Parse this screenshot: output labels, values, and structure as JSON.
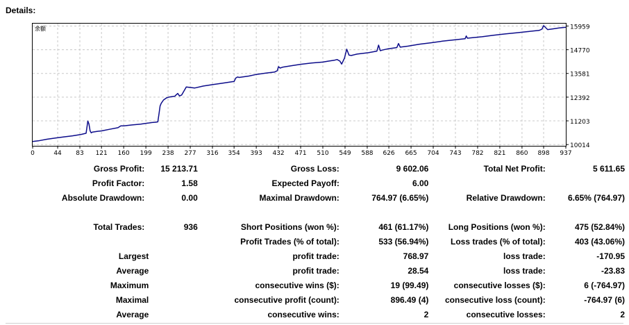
{
  "title": "Details:",
  "chart_data": {
    "type": "line",
    "title": "",
    "chart_label": "余额",
    "xlabel": "",
    "ylabel": "",
    "x_ticks": [
      0,
      44,
      83,
      121,
      160,
      199,
      238,
      277,
      316,
      354,
      393,
      432,
      471,
      510,
      549,
      588,
      626,
      665,
      704,
      743,
      782,
      821,
      860,
      898,
      937
    ],
    "y_ticks": [
      10014,
      11203,
      12392,
      13581,
      14770,
      15959
    ],
    "xlim": [
      0,
      937
    ],
    "ylim": [
      9950,
      16080
    ],
    "grid": true,
    "line_color": "#0c0c8a",
    "series": [
      {
        "x": [
          0,
          10,
          25,
          40,
          55,
          70,
          85,
          94,
          97,
          99,
          101,
          103,
          105,
          110,
          115,
          121,
          135,
          150,
          155,
          160,
          175,
          190,
          199,
          205,
          210,
          215,
          220,
          222,
          224,
          226,
          230,
          235,
          240,
          245,
          250,
          252,
          255,
          258,
          262,
          270,
          285,
          300,
          316,
          335,
          354,
          357,
          360,
          363,
          380,
          393,
          410,
          425,
          430,
          432,
          435,
          440,
          455,
          471,
          490,
          510,
          520,
          530,
          535,
          540,
          543,
          548,
          552,
          556,
          560,
          570,
          590,
          605,
          608,
          611,
          614,
          625,
          640,
          643,
          646,
          660,
          680,
          700,
          720,
          740,
          760,
          762,
          764,
          790,
          810,
          830,
          850,
          870,
          890,
          895,
          898,
          905,
          915,
          925,
          937
        ],
        "y": [
          10170,
          10200,
          10280,
          10340,
          10400,
          10450,
          10520,
          10580,
          11190,
          11050,
          10700,
          10600,
          10640,
          10660,
          10680,
          10700,
          10780,
          10860,
          10950,
          10950,
          11000,
          11040,
          11080,
          11100,
          11120,
          11130,
          11150,
          11550,
          11950,
          12080,
          12250,
          12350,
          12400,
          12420,
          12440,
          12500,
          12580,
          12450,
          12500,
          12900,
          12850,
          12950,
          13020,
          13100,
          13180,
          13350,
          13400,
          13380,
          13450,
          13530,
          13600,
          13650,
          13720,
          13920,
          13850,
          13900,
          13970,
          14040,
          14100,
          14150,
          14200,
          14240,
          14280,
          14200,
          14050,
          14350,
          14800,
          14500,
          14480,
          14550,
          14620,
          14700,
          15000,
          14720,
          14750,
          14820,
          14880,
          15080,
          14900,
          14950,
          15050,
          15120,
          15200,
          15260,
          15320,
          15460,
          15350,
          15420,
          15500,
          15560,
          15620,
          15680,
          15740,
          15800,
          15980,
          15780,
          15820,
          15860,
          15900
        ]
      }
    ]
  },
  "stats": {
    "row1": {
      "gross_profit_label": "Gross Profit:",
      "gross_profit": "15 213.71",
      "gross_loss_label": "Gross Loss:",
      "gross_loss": "9 602.06",
      "total_net_profit_label": "Total Net Profit:",
      "total_net_profit": "5 611.65"
    },
    "row2": {
      "profit_factor_label": "Profit Factor:",
      "profit_factor": "1.58",
      "expected_payoff_label": "Expected Payoff:",
      "expected_payoff": "6.00"
    },
    "row3": {
      "absolute_drawdown_label": "Absolute Drawdown:",
      "absolute_drawdown": "0.00",
      "maximal_drawdown_label": "Maximal Drawdown:",
      "maximal_drawdown": "764.97 (6.65%)",
      "relative_drawdown_label": "Relative Drawdown:",
      "relative_drawdown": "6.65% (764.97)"
    },
    "row4": {
      "total_trades_label": "Total Trades:",
      "total_trades": "936",
      "short_positions_label": "Short Positions (won %):",
      "short_positions": "461 (61.17%)",
      "long_positions_label": "Long Positions (won %):",
      "long_positions": "475 (52.84%)"
    },
    "row5": {
      "profit_trades_label": "Profit Trades (% of total):",
      "profit_trades": "533 (56.94%)",
      "loss_trades_label": "Loss trades (% of total):",
      "loss_trades": "403 (43.06%)"
    },
    "row6": {
      "group": "Largest",
      "profit_trade_label": "profit trade:",
      "profit_trade": "768.97",
      "loss_trade_label": "loss trade:",
      "loss_trade": "-170.95"
    },
    "row7": {
      "group": "Average",
      "profit_trade_label": "profit trade:",
      "profit_trade": "28.54",
      "loss_trade_label": "loss trade:",
      "loss_trade": "-23.83"
    },
    "row8": {
      "group": "Maximum",
      "wins_label": "consecutive wins ($):",
      "wins": "19 (99.49)",
      "losses_label": "consecutive losses ($):",
      "losses": "6 (-764.97)"
    },
    "row9": {
      "group": "Maximal",
      "profit_label": "consecutive profit (count):",
      "profit": "896.49 (4)",
      "loss_label": "consecutive loss (count):",
      "loss": "-764.97 (6)"
    },
    "row10": {
      "group": "Average",
      "wins_label": "consecutive wins:",
      "wins": "2",
      "losses_label": "consecutive losses:",
      "losses": "2"
    }
  }
}
